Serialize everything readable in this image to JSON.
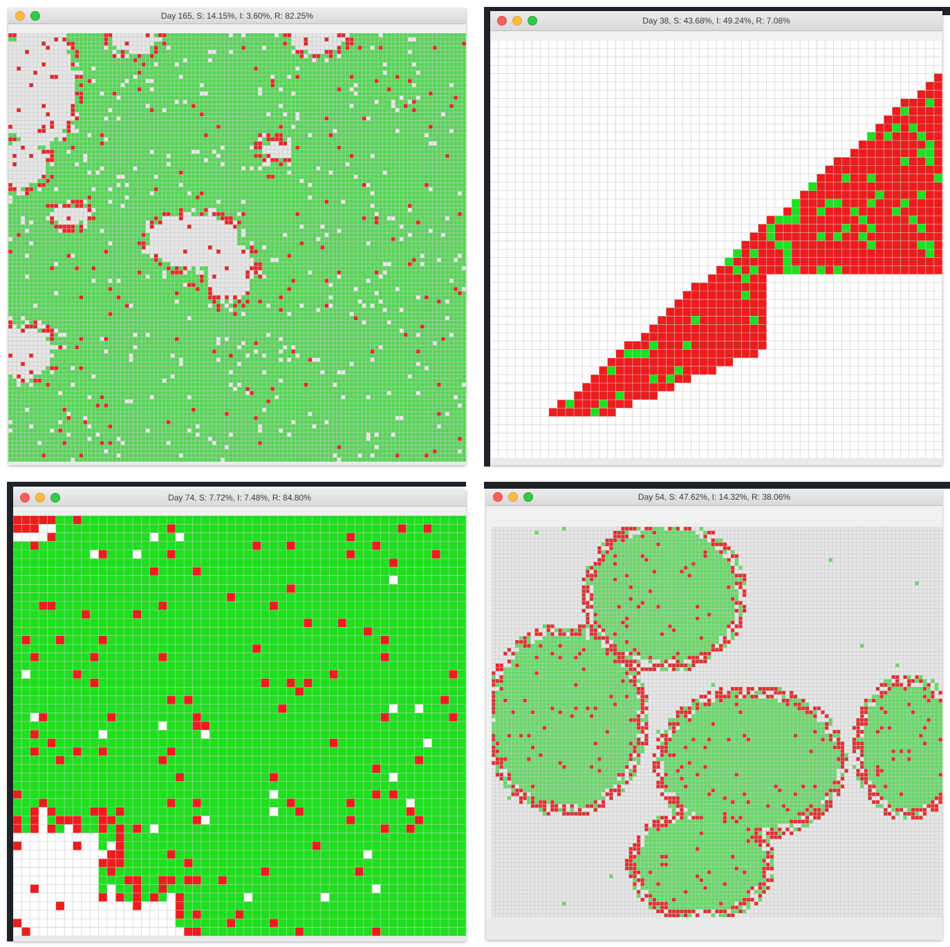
{
  "windows": [
    {
      "id": "tl",
      "title": "Day 165, S: 14.15%, I: 3.60%, R: 82.25%",
      "colors": {
        "susceptible": "#e6e6e6",
        "infected": "#e42727",
        "recovered": "#55d655"
      }
    },
    {
      "id": "tr",
      "title": "Day 38, S: 43.68%, I: 49.24%, R: 7.08%",
      "colors": {
        "susceptible": "#ffffff",
        "infected": "#ee1c1c",
        "recovered": "#1ee01e"
      }
    },
    {
      "id": "bl",
      "title": "Day 74, S: 7.72%, I: 7.48%, R: 84.80%",
      "colors": {
        "susceptible": "#ffffff",
        "infected": "#ee1c1c",
        "recovered": "#1ee01e"
      }
    },
    {
      "id": "br",
      "title": "Day 54, S: 47.62%, I: 14.32%, R: 38.06%",
      "colors": {
        "susceptible": "#e6e6e6",
        "infected": "#e03030",
        "recovered": "#66d966"
      }
    }
  ],
  "colors": {
    "titlebar": "#e4e4e4",
    "gridline": "#c8c8c8"
  }
}
